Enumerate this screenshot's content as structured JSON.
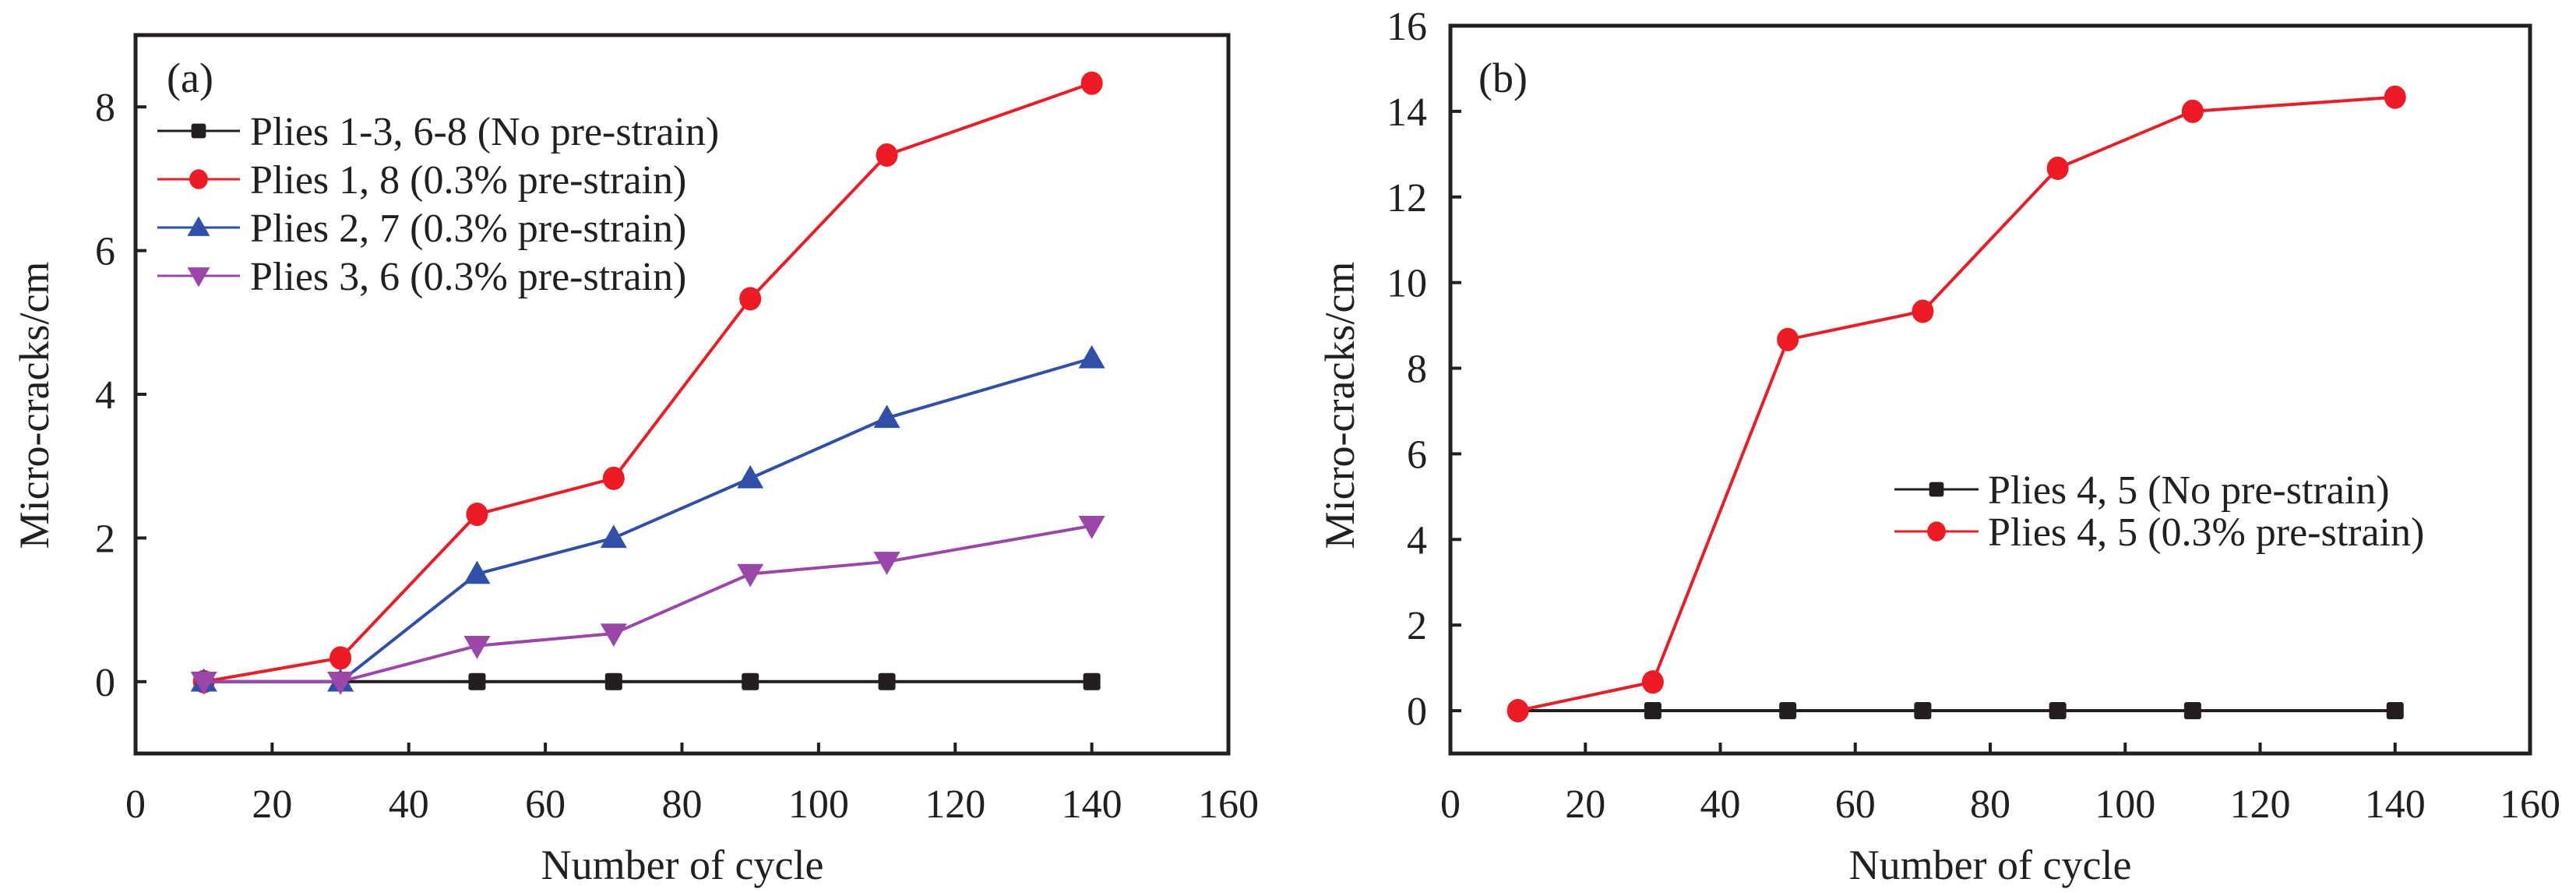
{
  "figure": {
    "panels": [
      "(a)",
      "(b)"
    ]
  },
  "chart_data": [
    {
      "type": "line",
      "panel_label": "(a)",
      "title": "",
      "xlabel": "Number of cycle",
      "ylabel": "Micro-cracks/cm",
      "xlim": [
        0,
        160
      ],
      "ylim": [
        -1,
        9
      ],
      "xticks": [
        0,
        20,
        40,
        60,
        80,
        100,
        120,
        140,
        160
      ],
      "yticks": [
        0,
        2,
        4,
        6,
        8
      ],
      "grid": false,
      "legend_position": "top-left",
      "x": [
        10,
        30,
        50,
        70,
        90,
        110,
        140
      ],
      "series": [
        {
          "name": "Plies 1-3, 6-8 (No pre-strain)",
          "color": "#231f20",
          "marker": "square",
          "values": [
            0,
            0,
            0,
            0,
            0,
            0,
            0
          ]
        },
        {
          "name": "Plies 1, 8 (0.3% pre-strain)",
          "color": "#ed1c24",
          "marker": "circle",
          "values": [
            0,
            0.33,
            2.33,
            2.83,
            5.33,
            7.33,
            8.33
          ]
        },
        {
          "name": "Plies 2, 7 (0.3% pre-strain)",
          "color": "#2f4fa8",
          "marker": "triangle-up",
          "values": [
            0,
            0,
            1.5,
            2.0,
            2.83,
            3.67,
            4.5
          ]
        },
        {
          "name": "Plies 3, 6 (0.3% pre-strain)",
          "color": "#9b46a9",
          "marker": "triangle-down",
          "values": [
            0,
            0,
            0.5,
            0.67,
            1.5,
            1.67,
            2.17
          ]
        }
      ]
    },
    {
      "type": "line",
      "panel_label": "(b)",
      "title": "",
      "xlabel": "Number of cycle",
      "ylabel": "Micro-cracks/cm",
      "xlim": [
        0,
        160
      ],
      "ylim": [
        -1,
        16
      ],
      "xticks": [
        0,
        20,
        40,
        60,
        80,
        100,
        120,
        140,
        160
      ],
      "yticks": [
        0,
        2,
        4,
        6,
        8,
        10,
        12,
        14,
        16
      ],
      "grid": false,
      "legend_position": "center-right",
      "x": [
        10,
        30,
        50,
        70,
        90,
        110,
        140
      ],
      "series": [
        {
          "name": "Plies 4, 5 (No pre-strain)",
          "color": "#231f20",
          "marker": "square",
          "values": [
            0,
            0,
            0,
            0,
            0,
            0,
            0
          ]
        },
        {
          "name": "Plies 4, 5 (0.3% pre-strain)",
          "color": "#ed1c24",
          "marker": "circle",
          "values": [
            0,
            0.67,
            8.67,
            9.33,
            12.67,
            14.0,
            14.33
          ]
        }
      ]
    }
  ]
}
